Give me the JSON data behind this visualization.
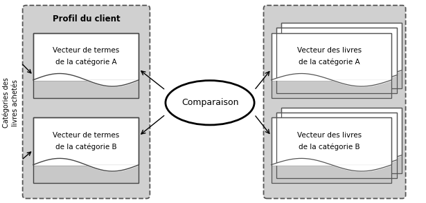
{
  "fig_width": 6.15,
  "fig_height": 2.94,
  "bg_color": "#ffffff",
  "box_bg": "#ffffff",
  "box_edge": "#333333",
  "dash_box_bg": "#d0d0d0",
  "dash_box_edge": "#555555",
  "inner_dash_bg": "#c8c8c8",
  "ellipse_bg": "#ffffff",
  "ellipse_edge": "#000000",
  "left_box_title": "Profil du client",
  "left_box_A_text": "Vecteur de termes\nde la catégorie A",
  "left_box_B_text": "Vecteur de termes\nde la catégorie B",
  "right_box_A_text": "Vecteur des livres\nde la catégorie A",
  "right_box_B_text": "Vecteur des livres\nde la catégorie B",
  "ellipse_text": "Comparaison",
  "side_text": "Catégories des\nlivres achetés",
  "arrow_color": "#000000",
  "xlim": [
    0,
    10
  ],
  "ylim": [
    0,
    5
  ]
}
